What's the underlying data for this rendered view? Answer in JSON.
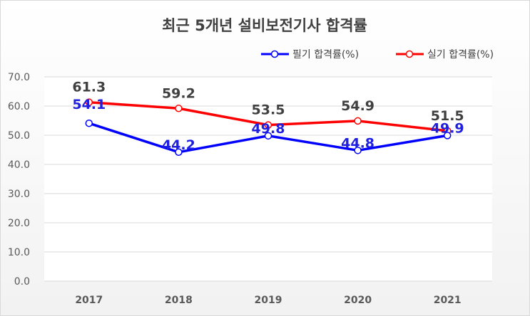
{
  "chart_data": {
    "type": "line",
    "title": "최근 5개년 설비보전기사 합격률",
    "categories": [
      "2017",
      "2018",
      "2019",
      "2020",
      "2021"
    ],
    "ylim": [
      0,
      70
    ],
    "yticks": [
      "0.0",
      "10.0",
      "20.0",
      "30.0",
      "40.0",
      "50.0",
      "60.0",
      "70.0"
    ],
    "grid": true,
    "legend_position": "top-right",
    "series": [
      {
        "name": "필기 합격률(%)",
        "color": "#0000ff",
        "label_color": "#1f1fe0",
        "values": [
          54.1,
          44.2,
          49.8,
          44.8,
          49.9
        ]
      },
      {
        "name": "실기 합격률(%)",
        "color": "#ff0000",
        "label_color": "#404040",
        "values": [
          61.3,
          59.2,
          53.5,
          54.9,
          51.5
        ]
      }
    ]
  }
}
